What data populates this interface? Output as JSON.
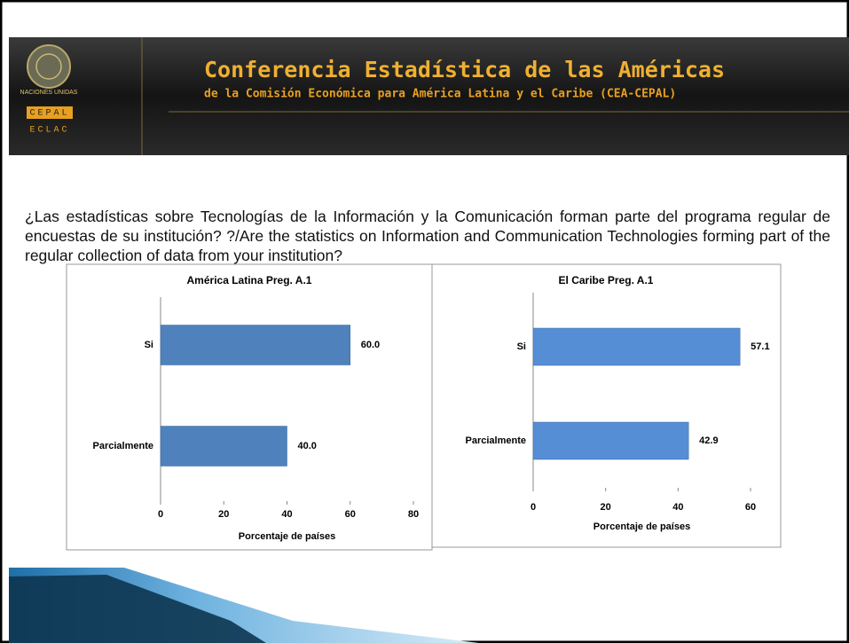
{
  "header": {
    "org": "NACIONES UNIDAS",
    "logo_top": "CEPAL",
    "logo_bottom": "ECLAC",
    "title": "Conferencia Estadística de las Américas",
    "subtitle": "de la Comisión Económica para América Latina y el Caribe (CEA-CEPAL)"
  },
  "question": "¿Las estadísticas sobre Tecnologías de la Información y la Comunicación forman parte del programa regular de encuestas de su institución? ?/Are the statistics on Information and Communication Technologies forming part of the regular collection of data from your institution?",
  "chart_data": [
    {
      "type": "bar",
      "orientation": "horizontal",
      "title": "América Latina Preg. A.1",
      "categories": [
        "Si",
        "Parcialmente"
      ],
      "values": [
        60,
        40
      ],
      "value_labels": [
        "60.0",
        "40.0"
      ],
      "color": "#4f81bd",
      "xlim": [
        0,
        80
      ],
      "xticks": [
        0,
        20,
        40,
        60,
        80
      ],
      "xlabel": "Porcentaje de países"
    },
    {
      "type": "bar",
      "orientation": "horizontal",
      "title": "El Caribe Preg. A.1",
      "categories": [
        "Si",
        "Parcialmente"
      ],
      "values": [
        57.1,
        42.9
      ],
      "value_labels": [
        "57.1",
        "42.9"
      ],
      "color": "#558ed5",
      "xlim": [
        0,
        60
      ],
      "xticks": [
        0,
        20,
        40,
        60
      ],
      "xlabel": "Porcentaje de países"
    }
  ]
}
